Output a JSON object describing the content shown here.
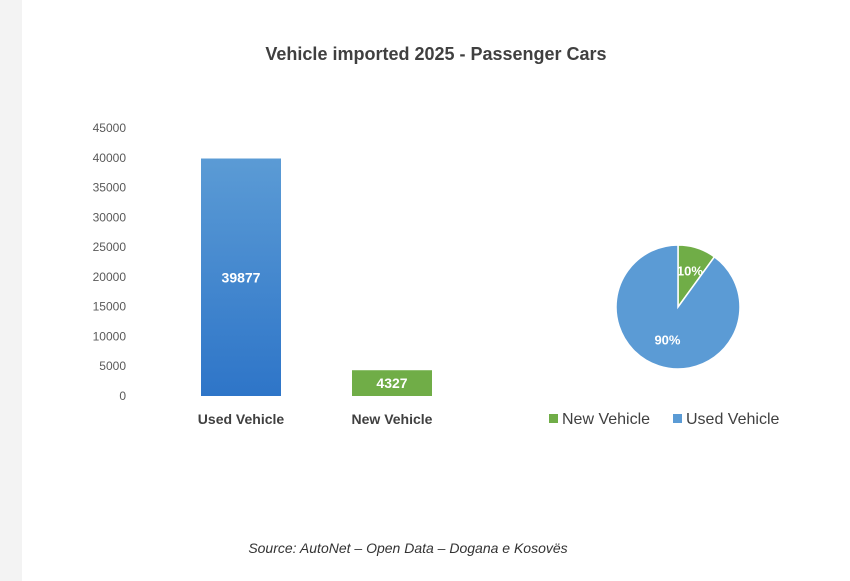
{
  "chart_data": {
    "title": "Vehicle imported 2025 - Passenger Cars",
    "source": "Source:  AutoNet – Open Data – Dogana e Kosovës",
    "charts": [
      {
        "type": "bar",
        "categories": [
          "Used Vehicle",
          "New Vehicle"
        ],
        "values": [
          39877,
          4327
        ],
        "data_labels": [
          "39877",
          "4327"
        ],
        "colors": [
          "#5b9bd5",
          "#70ad47"
        ],
        "ylim": [
          0,
          45000
        ],
        "yticks": [
          0,
          5000,
          10000,
          15000,
          20000,
          25000,
          30000,
          35000,
          40000,
          45000
        ],
        "grid": false
      },
      {
        "type": "pie",
        "slices": [
          {
            "label": "New Vehicle",
            "value": 10,
            "display": "10%",
            "color": "#70ad47"
          },
          {
            "label": "Used Vehicle",
            "value": 90,
            "display": "90%",
            "color": "#5b9bd5"
          }
        ],
        "legend": "bottom"
      }
    ]
  }
}
